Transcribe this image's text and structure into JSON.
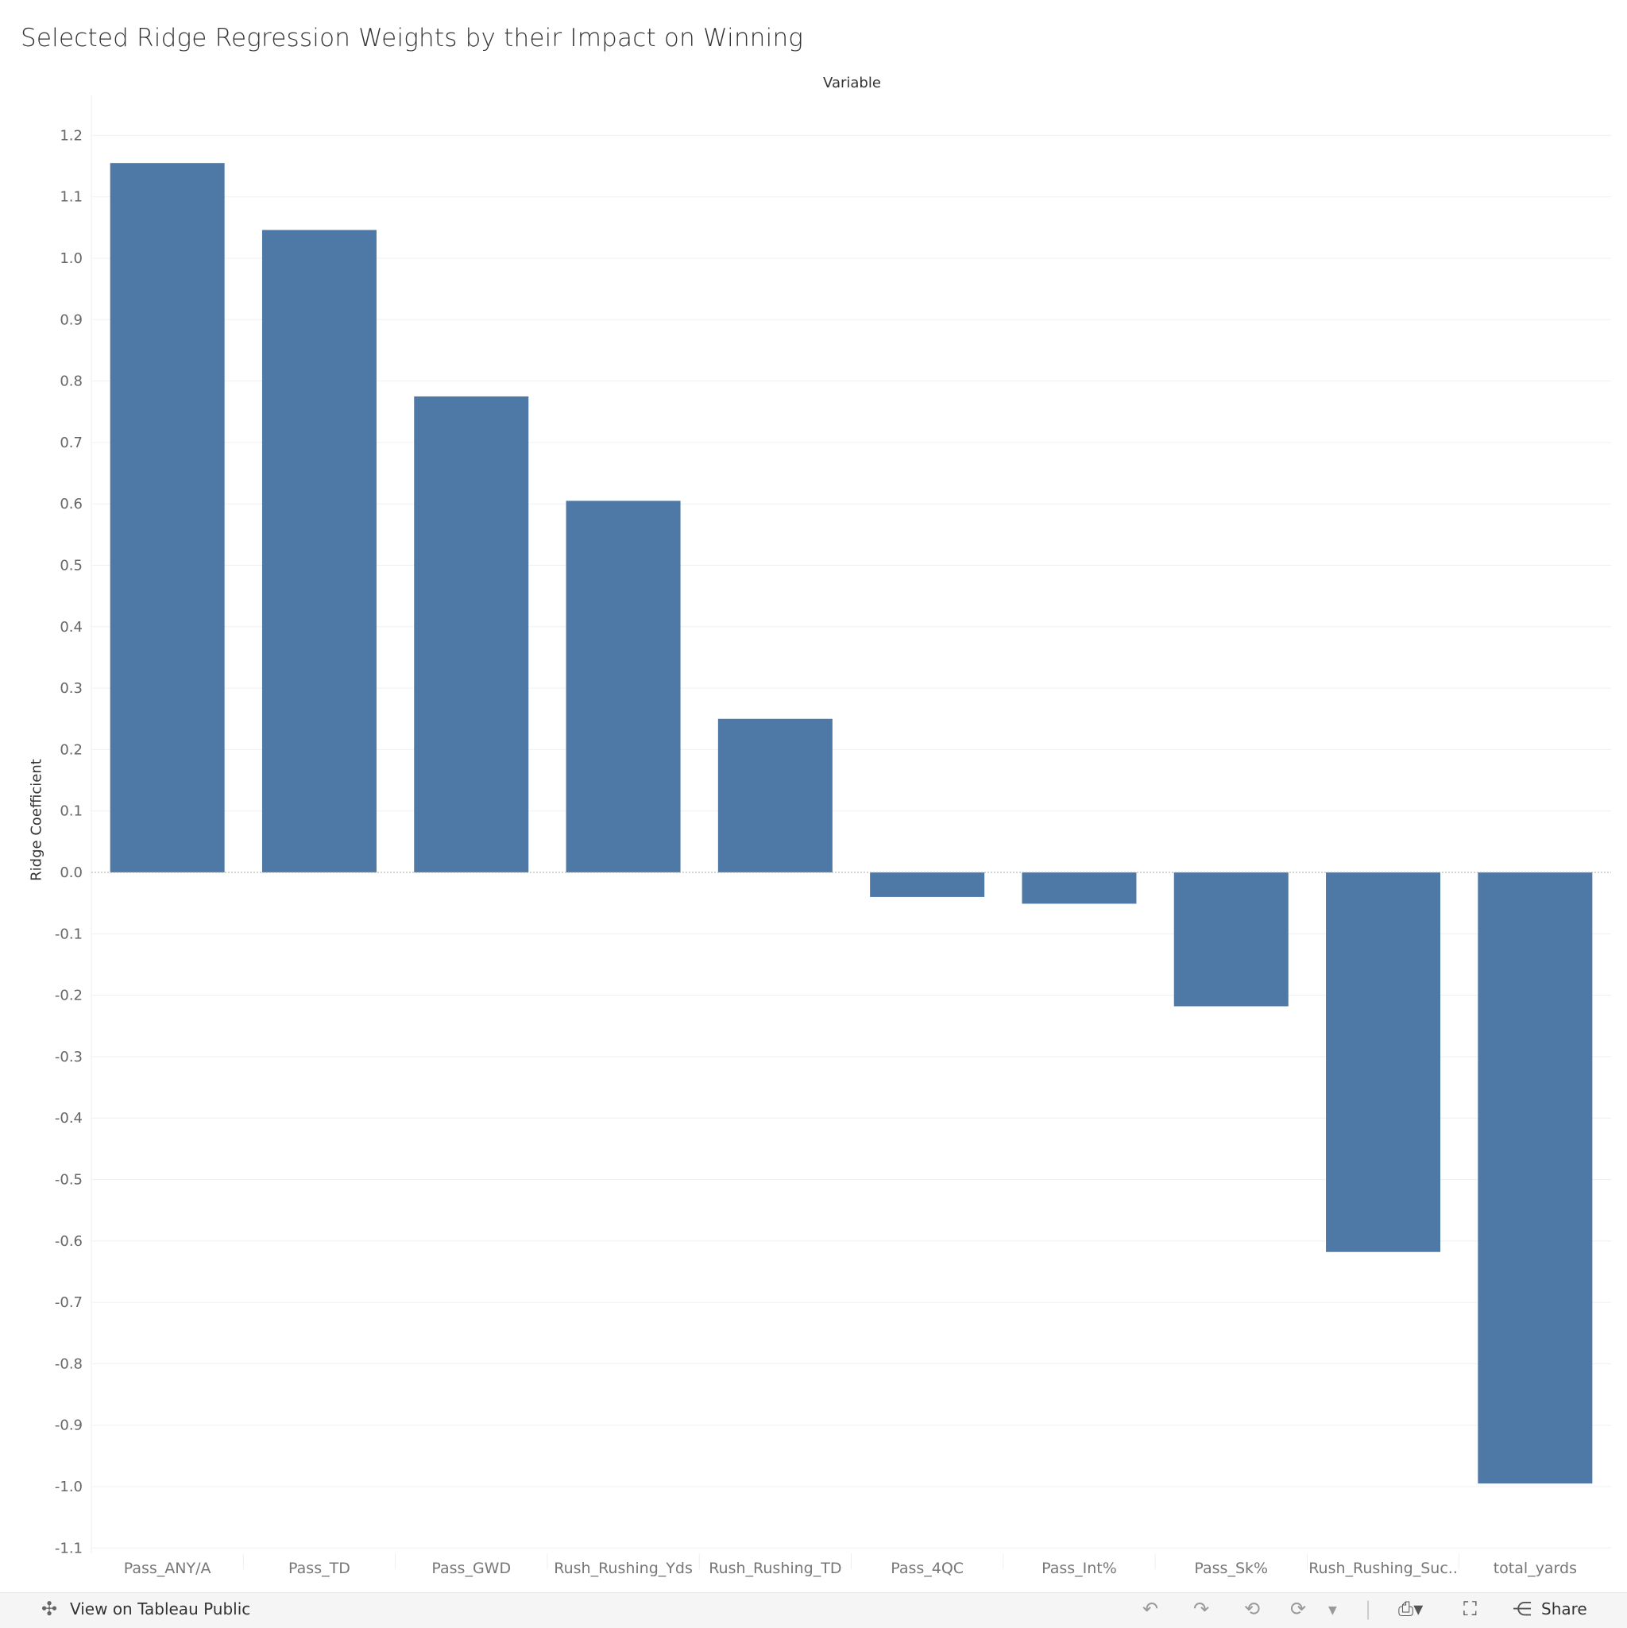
{
  "chart_data": {
    "type": "bar",
    "title": "Selected Ridge Regression Weights by their Impact on Winning",
    "column_header": "Variable",
    "ylabel": "Ridge Coefficient",
    "xlabel": "",
    "ylim": [
      -1.1,
      1.2
    ],
    "yticks": [
      "1.2",
      "1.1",
      "1.0",
      "0.9",
      "0.8",
      "0.7",
      "0.6",
      "0.5",
      "0.4",
      "0.3",
      "0.2",
      "0.1",
      "0.0",
      "-0.1",
      "-0.2",
      "-0.3",
      "-0.4",
      "-0.5",
      "-0.6",
      "-0.7",
      "-0.8",
      "-0.9",
      "-1.0",
      "-1.1"
    ],
    "categories": [
      "Pass_ANY/A",
      "Pass_TD",
      "Pass_GWD",
      "Rush_Rushing_Yds",
      "Rush_Rushing_TD",
      "Pass_4QC",
      "Pass_Int%",
      "Pass_Sk%",
      "Rush_Rushing_Suc..",
      "total_yards"
    ],
    "values": [
      1.155,
      1.046,
      0.775,
      0.605,
      0.25,
      -0.04,
      -0.051,
      -0.218,
      -0.618,
      -0.995
    ],
    "bar_color": "#4e79a7",
    "grid": true
  },
  "toolbar": {
    "view_label": "View on Tableau Public",
    "share_label": "Share",
    "icons": [
      "tableau-logo-icon",
      "undo-icon",
      "redo-icon",
      "revert-icon",
      "refresh-icon",
      "pause-dropdown-icon",
      "download-icon",
      "fullscreen-icon",
      "share-icon"
    ]
  }
}
